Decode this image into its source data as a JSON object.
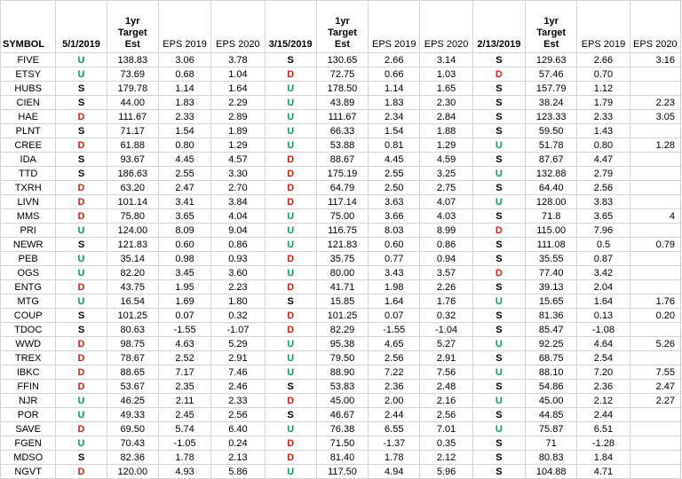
{
  "headers": [
    "SYMBOL",
    "5/1/2019",
    "1yr\nTarget\nEst",
    "EPS 2019",
    "EPS 2020",
    "3/15/2019",
    "1yr\nTarget\nEst",
    "EPS 2019",
    "EPS 2020",
    "2/13/2019",
    "1yr\nTarget\nEst",
    "EPS 2019",
    "EPS 2020"
  ],
  "signal_colors": {
    "S": "#000000",
    "U": "#00a650",
    "D": "#d9230f"
  },
  "rows": [
    [
      "FIVE",
      "U",
      "138.83",
      "3.06",
      "3.78",
      "S",
      "130.65",
      "2.66",
      "3.14",
      "S",
      "129.63",
      "2.66",
      "3.16"
    ],
    [
      "ETSY",
      "U",
      "73.69",
      "0.68",
      "1.04",
      "D",
      "72.75",
      "0.66",
      "1.03",
      "D",
      "57.46",
      "0.70",
      ""
    ],
    [
      "HUBS",
      "S",
      "179.78",
      "1.14",
      "1.64",
      "U",
      "178.50",
      "1.14",
      "1.65",
      "S",
      "157.79",
      "1.12",
      ""
    ],
    [
      "CIEN",
      "S",
      "44.00",
      "1.83",
      "2.29",
      "U",
      "43.89",
      "1.83",
      "2.30",
      "S",
      "38.24",
      "1.79",
      "2.23"
    ],
    [
      "HAE",
      "D",
      "111.67",
      "2.33",
      "2.89",
      "U",
      "111.67",
      "2.34",
      "2.84",
      "S",
      "123.33",
      "2.33",
      "3.05"
    ],
    [
      "PLNT",
      "S",
      "71.17",
      "1.54",
      "1.89",
      "U",
      "66.33",
      "1.54",
      "1.88",
      "S",
      "59.50",
      "1.43",
      ""
    ],
    [
      "CREE",
      "D",
      "61.88",
      "0.80",
      "1.29",
      "U",
      "53.88",
      "0.81",
      "1.29",
      "U",
      "51.78",
      "0.80",
      "1.28"
    ],
    [
      "IDA",
      "S",
      "93.67",
      "4.45",
      "4.57",
      "D",
      "88.67",
      "4.45",
      "4.59",
      "S",
      "87.67",
      "4.47",
      ""
    ],
    [
      "TTD",
      "S",
      "186.63",
      "2.55",
      "3.30",
      "D",
      "175.19",
      "2.55",
      "3.25",
      "U",
      "132.88",
      "2.79",
      ""
    ],
    [
      "TXRH",
      "D",
      "63.20",
      "2.47",
      "2.70",
      "D",
      "64.79",
      "2.50",
      "2.75",
      "S",
      "64.40",
      "2.56",
      ""
    ],
    [
      "LIVN",
      "D",
      "101.14",
      "3.41",
      "3.84",
      "D",
      "117.14",
      "3.63",
      "4.07",
      "U",
      "128.00",
      "3.83",
      ""
    ],
    [
      "MMS",
      "D",
      "75.80",
      "3.65",
      "4.04",
      "U",
      "75.00",
      "3.66",
      "4.03",
      "S",
      "71.8",
      "3.65",
      "4"
    ],
    [
      "PRI",
      "U",
      "124.00",
      "8.09",
      "9.04",
      "U",
      "116.75",
      "8.03",
      "8.99",
      "D",
      "115.00",
      "7.96",
      ""
    ],
    [
      "NEWR",
      "S",
      "121.83",
      "0.60",
      "0.86",
      "U",
      "121.83",
      "0.60",
      "0.86",
      "S",
      "111.08",
      "0.5",
      "0.79"
    ],
    [
      "PEB",
      "U",
      "35.14",
      "0.98",
      "0.93",
      "D",
      "35.75",
      "0.77",
      "0.94",
      "S",
      "35.55",
      "0.87",
      ""
    ],
    [
      "OGS",
      "U",
      "82.20",
      "3.45",
      "3.60",
      "U",
      "80.00",
      "3.43",
      "3.57",
      "D",
      "77.40",
      "3.42",
      ""
    ],
    [
      "ENTG",
      "D",
      "43.75",
      "1.95",
      "2.23",
      "D",
      "41.71",
      "1.98",
      "2.26",
      "S",
      "39.13",
      "2.04",
      ""
    ],
    [
      "MTG",
      "U",
      "16.54",
      "1.69",
      "1.80",
      "S",
      "15.85",
      "1.64",
      "1.76",
      "U",
      "15.65",
      "1.64",
      "1.76"
    ],
    [
      "COUP",
      "S",
      "101.25",
      "0.07",
      "0.32",
      "D",
      "101.25",
      "0.07",
      "0.32",
      "S",
      "81.36",
      "0.13",
      "0.20"
    ],
    [
      "TDOC",
      "S",
      "80.63",
      "-1.55",
      "-1.07",
      "D",
      "82.29",
      "-1.55",
      "-1.04",
      "S",
      "85.47",
      "-1.08",
      ""
    ],
    [
      "WWD",
      "D",
      "98.75",
      "4.63",
      "5.29",
      "U",
      "95.38",
      "4.65",
      "5.27",
      "U",
      "92.25",
      "4.64",
      "5.26"
    ],
    [
      "TREX",
      "D",
      "78.67",
      "2.52",
      "2.91",
      "U",
      "79.50",
      "2.56",
      "2.91",
      "S",
      "68.75",
      "2.54",
      ""
    ],
    [
      "IBKC",
      "D",
      "88.65",
      "7.17",
      "7.46",
      "U",
      "88.90",
      "7.22",
      "7.56",
      "U",
      "88.10",
      "7.20",
      "7.55"
    ],
    [
      "FFIN",
      "D",
      "53.67",
      "2.35",
      "2.46",
      "S",
      "53.83",
      "2.36",
      "2.48",
      "S",
      "54.86",
      "2.36",
      "2.47"
    ],
    [
      "NJR",
      "U",
      "46.25",
      "2.11",
      "2.33",
      "D",
      "45.00",
      "2.00",
      "2.16",
      "U",
      "45.00",
      "2.12",
      "2.27"
    ],
    [
      "POR",
      "U",
      "49.33",
      "2.45",
      "2.56",
      "S",
      "46.67",
      "2.44",
      "2.56",
      "S",
      "44.85",
      "2.44",
      ""
    ],
    [
      "SAVE",
      "D",
      "69.50",
      "5.74",
      "6.40",
      "U",
      "76.38",
      "6.55",
      "7.01",
      "U",
      "75.87",
      "6.51",
      ""
    ],
    [
      "FGEN",
      "U",
      "70.43",
      "-1.05",
      "0.24",
      "D",
      "71.50",
      "-1.37",
      "0.35",
      "S",
      "71",
      "-1.28",
      ""
    ],
    [
      "MDSO",
      "S",
      "82.36",
      "1.78",
      "2.13",
      "D",
      "81.40",
      "1.78",
      "2.12",
      "S",
      "80.83",
      "1.84",
      ""
    ],
    [
      "NGVT",
      "D",
      "120.00",
      "4.93",
      "5.86",
      "U",
      "117.50",
      "4.94",
      "5.96",
      "S",
      "104.88",
      "4.71",
      ""
    ]
  ]
}
